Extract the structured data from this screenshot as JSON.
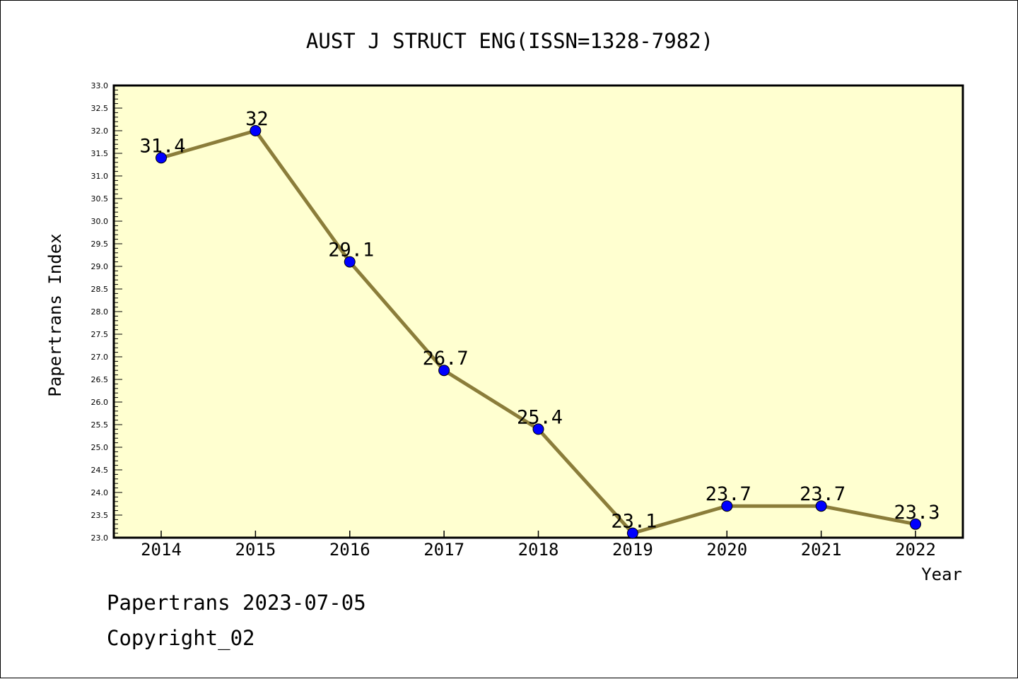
{
  "chart_data": {
    "type": "line",
    "title": "AUST J STRUCT ENG(ISSN=1328-7982)",
    "xlabel": "Year",
    "ylabel": "Papertrans Index",
    "categories": [
      "2014",
      "2015",
      "2016",
      "2017",
      "2018",
      "2019",
      "2020",
      "2021",
      "2022"
    ],
    "values": [
      31.4,
      32,
      29.1,
      26.7,
      25.4,
      23.1,
      23.7,
      23.7,
      23.3
    ],
    "data_labels": [
      "31.4",
      "32",
      "29.1",
      "26.7",
      "25.4",
      "23.1",
      "23.7",
      "23.7",
      "23.3"
    ],
    "ylim": [
      23.0,
      33.0
    ],
    "y_ticks": [
      "23.0",
      "23.5",
      "24.0",
      "24.5",
      "25.0",
      "25.5",
      "26.0",
      "26.5",
      "27.0",
      "27.5",
      "28.0",
      "28.5",
      "29.0",
      "29.5",
      "30.0",
      "30.5",
      "31.0",
      "31.5",
      "32.0",
      "32.5",
      "33.0"
    ],
    "grid": false,
    "plot_background": "#ffffd0",
    "line_color": "#8b7d3a",
    "marker_color": "#0000ff"
  },
  "footer": {
    "line1": "Papertrans 2023-07-05",
    "line2": "Copyright_02"
  }
}
